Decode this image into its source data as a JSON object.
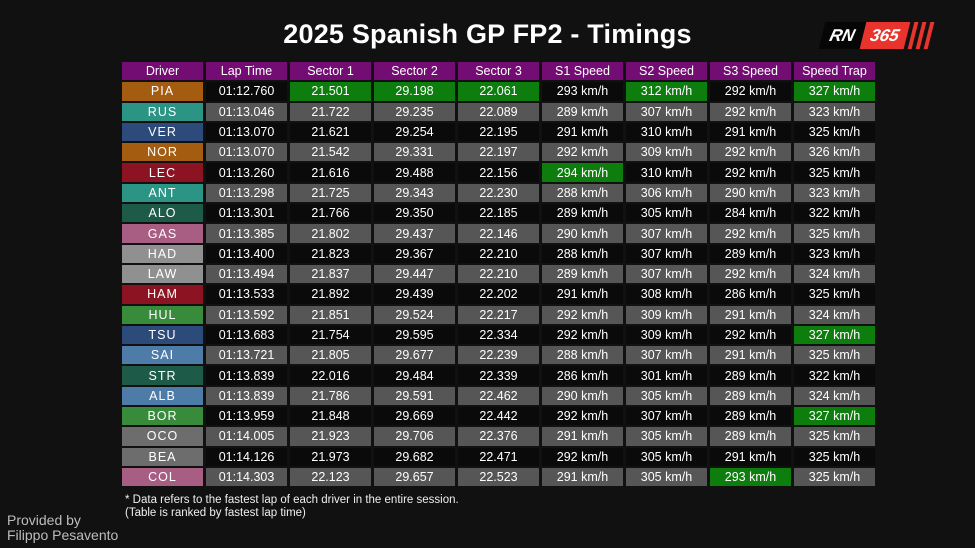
{
  "title": "2025 Spanish GP FP2 - Timings",
  "logo": {
    "rn": "RN",
    "num": "365"
  },
  "footnote": {
    "line1": "* Data refers to the fastest lap of each driver in the entire session.",
    "line2": "(Table is ranked by fastest lap time)"
  },
  "credit": {
    "line1": "Provided by",
    "line2": "Filippo Pesavento"
  },
  "colors": {
    "ui": {
      "header": "#730d73",
      "green": "#0d7d0e",
      "row_dark": "#0a0a0a",
      "row_gray": "#565656",
      "accent_red": "#e8342c"
    },
    "teams": {
      "mclaren": "#a35c10",
      "mercedes": "#2c9485",
      "red_bull": "#2c4b7a",
      "ferrari": "#8c1322",
      "aston_martin": "#1d5a48",
      "alpine": "#a85e83",
      "rb": "#909090",
      "sauber": "#398b3c",
      "williams": "#4e7ca8",
      "haas": "#6d6d6d"
    }
  },
  "chart_data": {
    "type": "table",
    "title": "2025 Spanish GP FP2 - Timings",
    "columns": [
      "Driver",
      "Lap Time",
      "Sector 1",
      "Sector 2",
      "Sector 3",
      "S1 Speed",
      "S2 Speed",
      "S3 Speed",
      "Speed Trap"
    ],
    "rows": [
      {
        "team": "mclaren",
        "green": [
          2,
          3,
          4,
          6,
          8
        ],
        "cells": [
          "PIA",
          "01:12.760",
          "21.501",
          "29.198",
          "22.061",
          "293 km/h",
          "312 km/h",
          "292 km/h",
          "327 km/h"
        ]
      },
      {
        "team": "mercedes",
        "green": [],
        "cells": [
          "RUS",
          "01:13.046",
          "21.722",
          "29.235",
          "22.089",
          "289 km/h",
          "307 km/h",
          "292 km/h",
          "323 km/h"
        ]
      },
      {
        "team": "red_bull",
        "green": [],
        "cells": [
          "VER",
          "01:13.070",
          "21.621",
          "29.254",
          "22.195",
          "291 km/h",
          "310 km/h",
          "291 km/h",
          "325 km/h"
        ]
      },
      {
        "team": "mclaren",
        "green": [],
        "cells": [
          "NOR",
          "01:13.070",
          "21.542",
          "29.331",
          "22.197",
          "292 km/h",
          "309 km/h",
          "292 km/h",
          "326 km/h"
        ]
      },
      {
        "team": "ferrari",
        "green": [
          5
        ],
        "cells": [
          "LEC",
          "01:13.260",
          "21.616",
          "29.488",
          "22.156",
          "294 km/h",
          "310 km/h",
          "292 km/h",
          "325 km/h"
        ]
      },
      {
        "team": "mercedes",
        "green": [],
        "cells": [
          "ANT",
          "01:13.298",
          "21.725",
          "29.343",
          "22.230",
          "288 km/h",
          "306 km/h",
          "290 km/h",
          "323 km/h"
        ]
      },
      {
        "team": "aston_martin",
        "green": [],
        "cells": [
          "ALO",
          "01:13.301",
          "21.766",
          "29.350",
          "22.185",
          "289 km/h",
          "305 km/h",
          "284 km/h",
          "322 km/h"
        ]
      },
      {
        "team": "alpine",
        "green": [],
        "cells": [
          "GAS",
          "01:13.385",
          "21.802",
          "29.437",
          "22.146",
          "290 km/h",
          "307 km/h",
          "292 km/h",
          "325 km/h"
        ]
      },
      {
        "team": "rb",
        "green": [],
        "cells": [
          "HAD",
          "01:13.400",
          "21.823",
          "29.367",
          "22.210",
          "288 km/h",
          "307 km/h",
          "289 km/h",
          "323 km/h"
        ]
      },
      {
        "team": "rb",
        "green": [],
        "cells": [
          "LAW",
          "01:13.494",
          "21.837",
          "29.447",
          "22.210",
          "289 km/h",
          "307 km/h",
          "292 km/h",
          "324 km/h"
        ]
      },
      {
        "team": "ferrari",
        "green": [],
        "cells": [
          "HAM",
          "01:13.533",
          "21.892",
          "29.439",
          "22.202",
          "291 km/h",
          "308 km/h",
          "286 km/h",
          "325 km/h"
        ]
      },
      {
        "team": "sauber",
        "green": [],
        "cells": [
          "HUL",
          "01:13.592",
          "21.851",
          "29.524",
          "22.217",
          "292 km/h",
          "309 km/h",
          "291 km/h",
          "324 km/h"
        ]
      },
      {
        "team": "red_bull",
        "green": [
          8
        ],
        "cells": [
          "TSU",
          "01:13.683",
          "21.754",
          "29.595",
          "22.334",
          "292 km/h",
          "309 km/h",
          "292 km/h",
          "327 km/h"
        ]
      },
      {
        "team": "williams",
        "green": [],
        "cells": [
          "SAI",
          "01:13.721",
          "21.805",
          "29.677",
          "22.239",
          "288 km/h",
          "307 km/h",
          "291 km/h",
          "325 km/h"
        ]
      },
      {
        "team": "aston_martin",
        "green": [],
        "cells": [
          "STR",
          "01:13.839",
          "22.016",
          "29.484",
          "22.339",
          "286 km/h",
          "301 km/h",
          "289 km/h",
          "322 km/h"
        ]
      },
      {
        "team": "williams",
        "green": [],
        "cells": [
          "ALB",
          "01:13.839",
          "21.786",
          "29.591",
          "22.462",
          "290 km/h",
          "305 km/h",
          "289 km/h",
          "324 km/h"
        ]
      },
      {
        "team": "sauber",
        "green": [
          8
        ],
        "cells": [
          "BOR",
          "01:13.959",
          "21.848",
          "29.669",
          "22.442",
          "292 km/h",
          "307 km/h",
          "289 km/h",
          "327 km/h"
        ]
      },
      {
        "team": "haas",
        "green": [],
        "cells": [
          "OCO",
          "01:14.005",
          "21.923",
          "29.706",
          "22.376",
          "291 km/h",
          "305 km/h",
          "289 km/h",
          "325 km/h"
        ]
      },
      {
        "team": "haas",
        "green": [],
        "cells": [
          "BEA",
          "01:14.126",
          "21.973",
          "29.682",
          "22.471",
          "292 km/h",
          "305 km/h",
          "291 km/h",
          "325 km/h"
        ]
      },
      {
        "team": "alpine",
        "green": [
          7
        ],
        "cells": [
          "COL",
          "01:14.303",
          "22.123",
          "29.657",
          "22.523",
          "291 km/h",
          "305 km/h",
          "293 km/h",
          "325 km/h"
        ]
      }
    ]
  }
}
